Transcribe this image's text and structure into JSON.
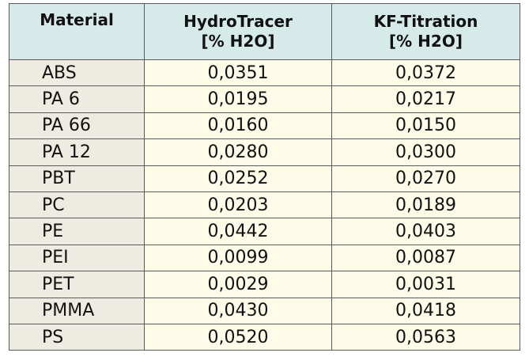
{
  "table": {
    "headers": [
      {
        "lines": [
          "Material"
        ]
      },
      {
        "lines": [
          "HydroTracer",
          "[% H2O]"
        ]
      },
      {
        "lines": [
          "KF-Titration",
          "[% H2O]"
        ]
      }
    ],
    "rows": [
      {
        "material": "ABS",
        "hydrotracer": "0,0351",
        "kf_titration": "0,0372"
      },
      {
        "material": "PA 6",
        "hydrotracer": "0,0195",
        "kf_titration": "0,0217"
      },
      {
        "material": "PA 66",
        "hydrotracer": "0,0160",
        "kf_titration": "0,0150"
      },
      {
        "material": "PA 12",
        "hydrotracer": "0,0280",
        "kf_titration": "0,0300"
      },
      {
        "material": "PBT",
        "hydrotracer": "0,0252",
        "kf_titration": "0,0270"
      },
      {
        "material": "PC",
        "hydrotracer": "0,0203",
        "kf_titration": "0,0189"
      },
      {
        "material": "PE",
        "hydrotracer": "0,0442",
        "kf_titration": "0,0403"
      },
      {
        "material": "PEI",
        "hydrotracer": "0,0099",
        "kf_titration": "0,0087"
      },
      {
        "material": "PET",
        "hydrotracer": "0,0029",
        "kf_titration": "0,0031"
      },
      {
        "material": "PMMA",
        "hydrotracer": "0,0430",
        "kf_titration": "0,0418"
      },
      {
        "material": "PS",
        "hydrotracer": "0,0520",
        "kf_titration": "0,0563"
      }
    ]
  },
  "colors": {
    "header_bg": "#d7eaea",
    "material_col_bg": "#eeece2",
    "value_cell_bg": "#fffbe9",
    "border": "#5a5a5a"
  }
}
